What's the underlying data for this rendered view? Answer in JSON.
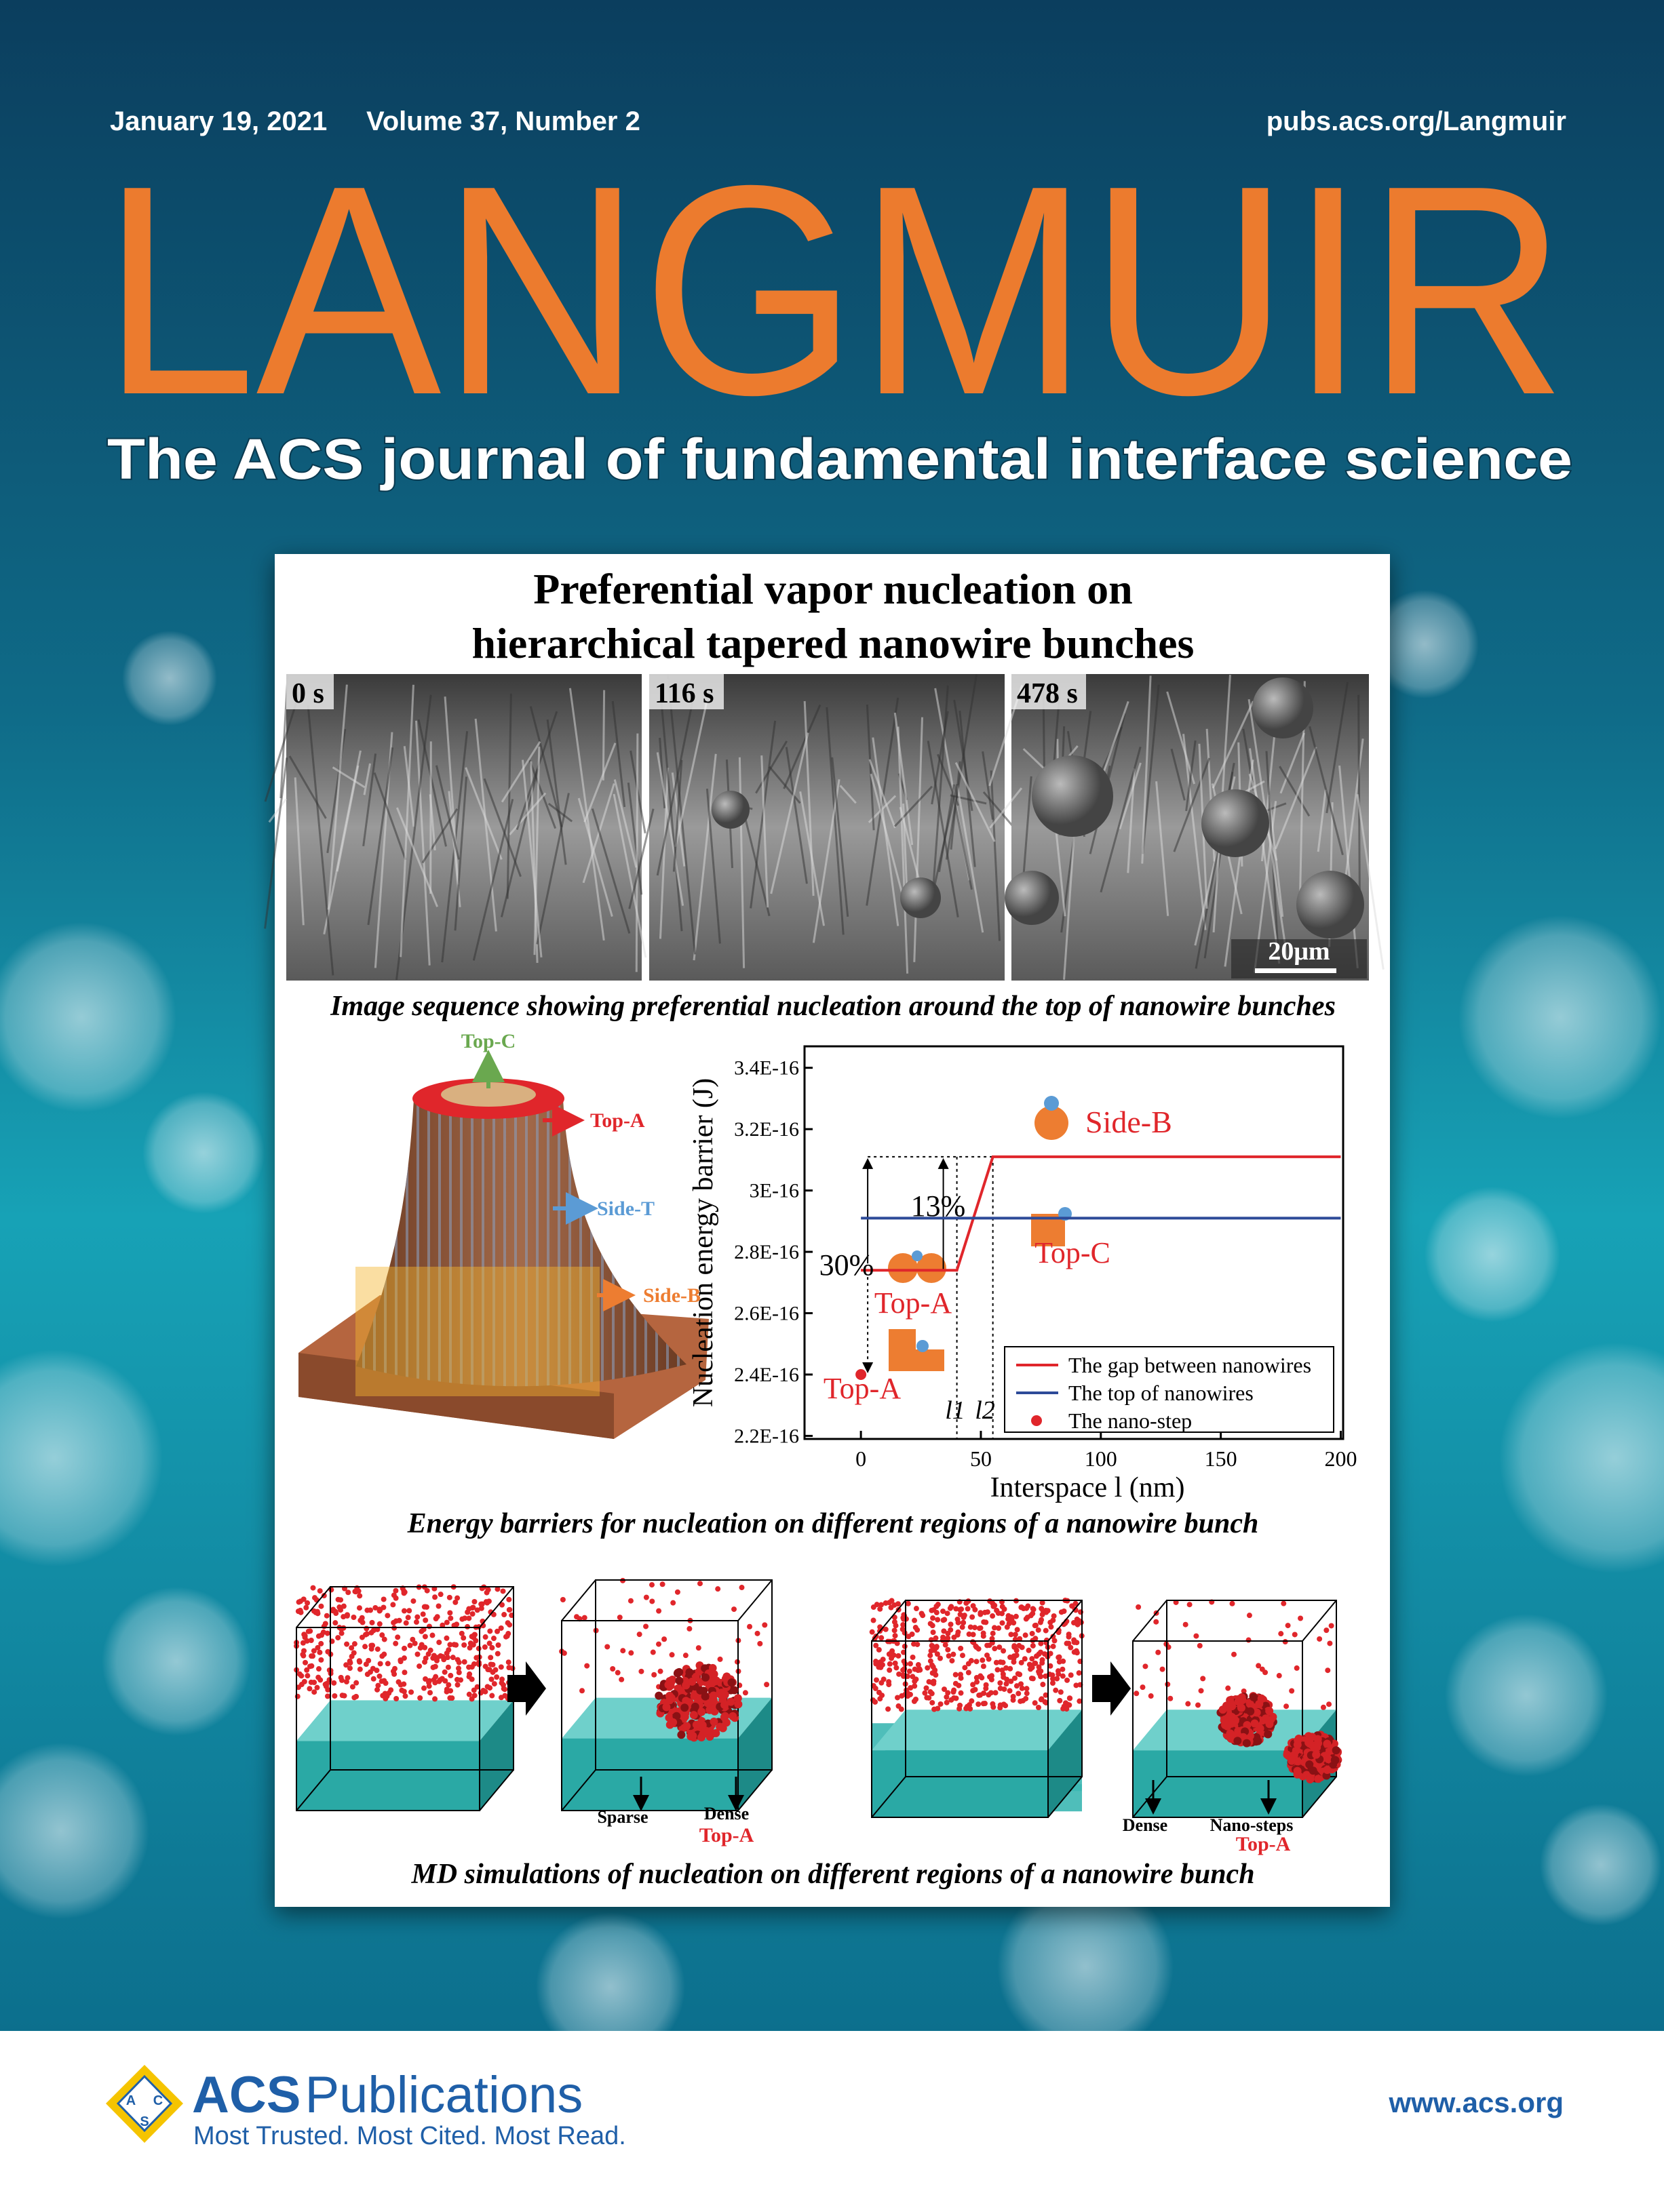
{
  "header": {
    "date": "January 19, 2021",
    "issue": "Volume 37, Number 2",
    "url": "pubs.acs.org/Langmuir"
  },
  "masthead": {
    "title": "LANGMUIR",
    "tagline": "The ACS journal of fundamental interface science"
  },
  "feature": {
    "title_lines": [
      "Preferential vapor nucleation on",
      "hierarchical tapered nanowire bunches"
    ],
    "sem": {
      "frames": [
        "0 s",
        "116 s",
        "478 s"
      ],
      "scale_bar": "20μm",
      "caption": "Image sequence showing preferential nucleation around the top of nanowire bunches"
    },
    "illustration": {
      "labels": [
        "Top-C",
        "Top-A",
        "Side-T",
        "Side-B"
      ]
    },
    "chart_data": {
      "type": "line",
      "x_label": "Interspace l (nm)",
      "y_label": "Nucleation energy barrier (J)",
      "xlim": [
        -23.5,
        201
      ],
      "ylim": [
        2.19e-16,
        3.47e-16
      ],
      "xticks": [
        0,
        50,
        100,
        150,
        200
      ],
      "yticks": [
        {
          "value": 2.2e-16,
          "label": "2.2E-16"
        },
        {
          "value": 2.4e-16,
          "label": "2.4E-16"
        },
        {
          "value": 2.6e-16,
          "label": "2.6E-16"
        },
        {
          "value": 2.8e-16,
          "label": "2.8E-16"
        },
        {
          "value": 3e-16,
          "label": "3E-16"
        },
        {
          "value": 3.2e-16,
          "label": "3.2E-16"
        },
        {
          "value": 3.4e-16,
          "label": "3.4E-16"
        }
      ],
      "series": [
        {
          "name": "The gap between nanowires",
          "color": "#e0262b",
          "x": [
            0,
            40,
            55,
            200
          ],
          "values": [
            2.74e-16,
            2.74e-16,
            3.11e-16,
            3.11e-16
          ]
        },
        {
          "name": "The top of nanowires",
          "color": "#2d4a98",
          "x": [
            0,
            200
          ],
          "values": [
            2.91e-16,
            2.91e-16
          ]
        },
        {
          "name": "The nano-step",
          "color": "#e0262b",
          "marker": "circle",
          "x": [
            0
          ],
          "values": [
            2.4e-16
          ]
        }
      ],
      "annotations": [
        "13%",
        "30%",
        "Side-B",
        "Top-C",
        "Top-A",
        "Top-A",
        "l1",
        "l2"
      ]
    },
    "chart_caption": "Energy barriers for nucleation on different regions of a nanowire bunch",
    "md": {
      "labels": [
        "Sparse",
        "Dense",
        "Top-A",
        "Dense",
        "Nano-steps",
        "Top-A"
      ],
      "caption": "MD simulations of nucleation on different regions of a nanowire bunch"
    }
  },
  "footer": {
    "emblem": [
      "A",
      "C",
      "S"
    ],
    "brand": "ACS",
    "name": "Publications",
    "slogan": "Most Trusted. Most Cited. Most Read.",
    "url": "www.acs.org"
  }
}
